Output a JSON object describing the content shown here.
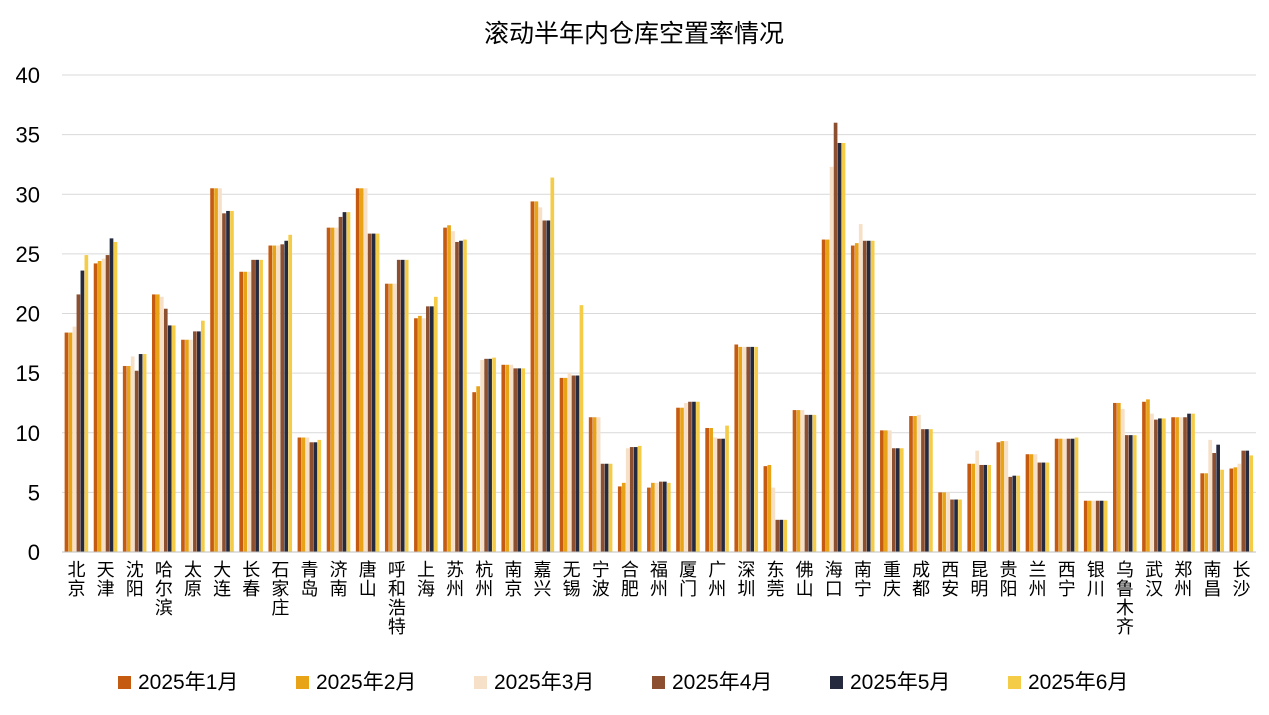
{
  "chart_data": {
    "type": "bar",
    "title": "滚动半年内仓库空置率情况",
    "xlabel": "",
    "ylabel": "",
    "ylim": [
      0,
      40
    ],
    "yticks": [
      0,
      5,
      10,
      15,
      20,
      25,
      30,
      35,
      40
    ],
    "grid": true,
    "legend_position": "bottom",
    "categories": [
      "北京",
      "天津",
      "沈阳",
      "哈尔滨",
      "太原",
      "大连",
      "长春",
      "石家庄",
      "青岛",
      "济南",
      "唐山",
      "呼和浩特",
      "上海",
      "苏州",
      "杭州",
      "南京",
      "嘉兴",
      "无锡",
      "宁波",
      "合肥",
      "福州",
      "厦门",
      "广州",
      "深圳",
      "东莞",
      "佛山",
      "海口",
      "南宁",
      "重庆",
      "成都",
      "西安",
      "昆明",
      "贵阳",
      "兰州",
      "西宁",
      "银川",
      "乌鲁木齐",
      "武汉",
      "郑州",
      "南昌",
      "长沙"
    ],
    "colors": [
      "#C55A11",
      "#E8A317",
      "#F7E0C8",
      "#8C5030",
      "#262A3F",
      "#F5CC47"
    ],
    "series": [
      {
        "name": "2025年1月",
        "values": [
          18.4,
          24.2,
          15.6,
          21.6,
          17.8,
          30.5,
          23.5,
          25.7,
          9.6,
          27.2,
          30.5,
          22.5,
          19.6,
          27.2,
          13.4,
          15.7,
          29.4,
          14.6,
          11.3,
          5.5,
          5.4,
          12.1,
          10.4,
          17.4,
          7.2,
          11.9,
          26.2,
          25.7,
          10.2,
          11.4,
          5.0,
          7.4,
          9.2,
          8.2,
          9.5,
          4.3,
          12.5,
          12.6,
          11.3,
          6.6,
          7.0
        ]
      },
      {
        "name": "2025年2月",
        "values": [
          18.4,
          24.4,
          15.6,
          21.6,
          17.8,
          30.5,
          23.5,
          25.7,
          9.6,
          27.2,
          30.5,
          22.5,
          19.8,
          27.4,
          13.9,
          15.7,
          29.4,
          14.6,
          11.3,
          5.8,
          5.8,
          12.1,
          10.4,
          17.2,
          7.3,
          11.9,
          26.2,
          25.9,
          10.2,
          11.4,
          5.0,
          7.4,
          9.3,
          8.2,
          9.5,
          4.3,
          12.5,
          12.8,
          11.3,
          6.6,
          7.1
        ]
      },
      {
        "name": "2025年3月",
        "values": [
          18.9,
          24.6,
          16.4,
          21.4,
          17.8,
          30.5,
          23.5,
          25.7,
          9.6,
          27.2,
          30.5,
          22.5,
          19.6,
          26.9,
          16.1,
          15.7,
          28.9,
          15.0,
          11.3,
          8.7,
          5.8,
          12.5,
          9.6,
          17.2,
          5.4,
          11.9,
          32.3,
          27.5,
          10.2,
          11.5,
          5.0,
          8.5,
          9.3,
          8.2,
          9.5,
          4.3,
          12.0,
          11.6,
          11.3,
          9.4,
          7.4
        ]
      },
      {
        "name": "2025年4月",
        "values": [
          21.6,
          24.9,
          15.2,
          20.4,
          18.5,
          28.4,
          24.5,
          25.8,
          9.2,
          28.1,
          26.7,
          24.5,
          20.6,
          26.0,
          16.2,
          15.4,
          27.8,
          14.8,
          7.4,
          8.8,
          5.9,
          12.6,
          9.5,
          17.2,
          2.7,
          11.5,
          36.0,
          26.1,
          8.7,
          10.3,
          4.4,
          7.3,
          6.3,
          7.5,
          9.5,
          4.3,
          9.8,
          11.1,
          11.3,
          8.3,
          8.5
        ]
      },
      {
        "name": "2025年5月",
        "values": [
          23.6,
          26.3,
          16.6,
          19.0,
          18.5,
          28.6,
          24.5,
          26.1,
          9.2,
          28.5,
          26.7,
          24.5,
          20.6,
          26.1,
          16.2,
          15.4,
          27.8,
          14.8,
          7.4,
          8.8,
          5.9,
          12.6,
          9.5,
          17.2,
          2.7,
          11.5,
          34.3,
          26.1,
          8.7,
          10.3,
          4.4,
          7.3,
          6.4,
          7.5,
          9.5,
          4.3,
          9.8,
          11.2,
          11.6,
          9.0,
          8.5
        ]
      },
      {
        "name": "2025年6月",
        "values": [
          24.9,
          26.0,
          16.6,
          19.0,
          19.4,
          28.6,
          24.5,
          26.6,
          9.4,
          28.5,
          26.7,
          24.5,
          21.4,
          26.2,
          16.3,
          15.4,
          31.4,
          20.7,
          7.4,
          8.9,
          5.8,
          12.6,
          10.6,
          17.2,
          2.7,
          11.5,
          34.3,
          26.1,
          8.7,
          10.3,
          4.4,
          7.3,
          6.4,
          7.5,
          9.6,
          4.3,
          9.8,
          11.2,
          11.6,
          6.9,
          8.1
        ]
      }
    ]
  }
}
